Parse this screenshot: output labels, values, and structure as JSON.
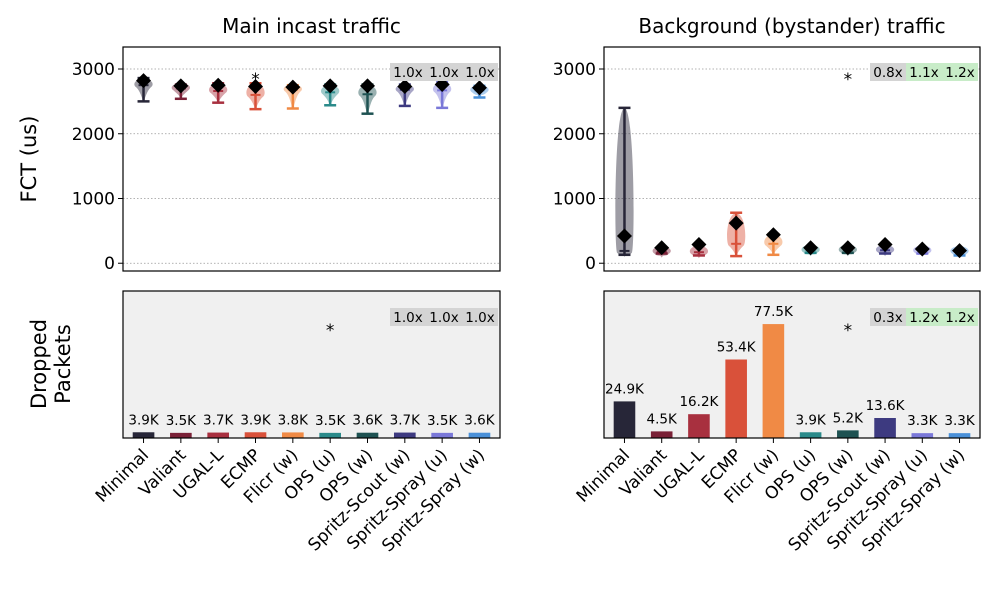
{
  "chart_data": {
    "type": "bar",
    "colors": [
      "#272638",
      "#7a2137",
      "#a8303f",
      "#d9513a",
      "#f08a45",
      "#2a8a8a",
      "#1e5252",
      "#3d3a80",
      "#7a78d8",
      "#4a90d8"
    ],
    "categories": [
      "Minimal",
      "Valiant",
      "UGAL-L",
      "ECMP",
      "Flicr (w)",
      "OPS (u)",
      "OPS (w)",
      "Spritz-Scout (w)",
      "Spritz-Spray (u)",
      "Spritz-Spray (w)"
    ],
    "ylabel_fct": "FCT (us)",
    "ylabel_drop": "Dropped\nPackets",
    "ylabel_drop_lines": [
      "Dropped",
      "Packets"
    ],
    "fct_ticks": [
      0,
      1000,
      2000,
      3000
    ],
    "fct_tick_labels": [
      "0",
      "1000",
      "2000",
      "3000"
    ],
    "fct_ylim": [
      -120,
      3340
    ],
    "drop_ylim": [
      0,
      100000
    ],
    "star_label": "*",
    "panels": [
      {
        "title": "Main incast traffic",
        "star_index": 3,
        "drop_star_index": 5,
        "badges": [
          "1.0x",
          "1.0x",
          "1.0x"
        ],
        "badge_colors": [
          "#d4d4d4",
          "#d4d4d4",
          "#d4d4d4"
        ],
        "drop_badges": [
          "1.0x",
          "1.0x",
          "1.0x"
        ],
        "drop_badge_colors": [
          "#d4d4d4",
          "#d4d4d4",
          "#d4d4d4"
        ],
        "fct_mean": [
          2820,
          2740,
          2750,
          2730,
          2720,
          2740,
          2740,
          2730,
          2760,
          2710
        ],
        "fct_min": [
          2500,
          2540,
          2480,
          2380,
          2390,
          2440,
          2310,
          2430,
          2400,
          2560
        ],
        "fct_max": [
          2860,
          2760,
          2780,
          2780,
          2750,
          2760,
          2760,
          2760,
          2800,
          2740
        ],
        "fct_median": [
          2750,
          2700,
          2660,
          2600,
          2680,
          2640,
          2610,
          2680,
          2670,
          2670
        ],
        "drops": [
          3900,
          3500,
          3700,
          3900,
          3800,
          3500,
          3600,
          3700,
          3500,
          3600
        ],
        "drop_labels": [
          "3.9K",
          "3.5K",
          "3.7K",
          "3.9K",
          "3.8K",
          "3.5K",
          "3.6K",
          "3.7K",
          "3.5K",
          "3.6K"
        ]
      },
      {
        "title": "Background (bystander) traffic",
        "star_index": 6,
        "drop_star_index": 6,
        "badges": [
          "0.8x",
          "1.1x",
          "1.2x"
        ],
        "badge_colors": [
          "#d4d4d4",
          "#c8ecc8",
          "#c8ecc8"
        ],
        "drop_badges": [
          "0.3x",
          "1.2x",
          "1.2x"
        ],
        "drop_badge_colors": [
          "#d4d4d4",
          "#c8ecc8",
          "#c8ecc8"
        ],
        "fct_mean": [
          420,
          240,
          290,
          620,
          440,
          240,
          240,
          290,
          220,
          195
        ],
        "fct_min": [
          130,
          150,
          120,
          110,
          130,
          160,
          160,
          150,
          150,
          120
        ],
        "fct_max": [
          2400,
          230,
          280,
          780,
          450,
          240,
          250,
          290,
          220,
          200
        ],
        "fct_median": [
          190,
          180,
          170,
          300,
          300,
          200,
          200,
          200,
          190,
          180
        ],
        "drops": [
          24900,
          4500,
          16200,
          53400,
          77500,
          3900,
          5200,
          13600,
          3300,
          3300
        ],
        "drop_labels": [
          "24.9K",
          "4.5K",
          "16.2K",
          "53.4K",
          "77.5K",
          "3.9K",
          "5.2K",
          "13.6K",
          "3.3K",
          "3.3K"
        ]
      }
    ]
  }
}
